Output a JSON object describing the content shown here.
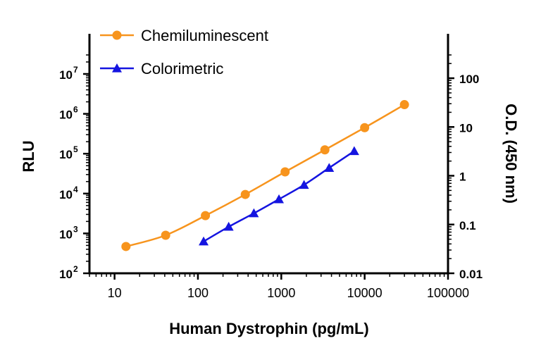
{
  "chart_data": {
    "type": "line",
    "title": "",
    "xlabel": "Human Dystrophin (pg/mL)",
    "ylabel": "RLU",
    "y2label": "O.D. (450 nm)",
    "xscale": "log",
    "yscale": "log",
    "y2scale": "log",
    "xlim": [
      5,
      100000
    ],
    "ylim": [
      100,
      30000000
    ],
    "y2lim": [
      0.01,
      300
    ],
    "x_ticks": [
      "10",
      "100",
      "1000",
      "10000",
      "100000"
    ],
    "y_ticks_base": [
      "10",
      "10",
      "10",
      "10",
      "10",
      "10"
    ],
    "y_ticks_exp": [
      "2",
      "3",
      "4",
      "5",
      "6",
      "7"
    ],
    "y2_ticks": [
      "0.01",
      "0.1",
      "1",
      "10",
      "100"
    ],
    "grid": false,
    "legend_position": "top-left",
    "colors": {
      "Chemiluminescent": "#f7941d",
      "Colorimetric": "#1414e0"
    },
    "series": [
      {
        "name": "Chemiluminescent",
        "axis": "left",
        "marker": "circle",
        "x": [
          13.7,
          41,
          123,
          370,
          1111,
          3333,
          10000,
          30000
        ],
        "y": [
          470,
          900,
          2800,
          9500,
          35000,
          125000,
          450000,
          1700000
        ]
      },
      {
        "name": "Colorimetric",
        "axis": "right",
        "marker": "triangle",
        "x": [
          117,
          234,
          469,
          938,
          1875,
          3750,
          7500
        ],
        "y": [
          0.045,
          0.09,
          0.17,
          0.33,
          0.65,
          1.45,
          3.2
        ]
      }
    ]
  }
}
